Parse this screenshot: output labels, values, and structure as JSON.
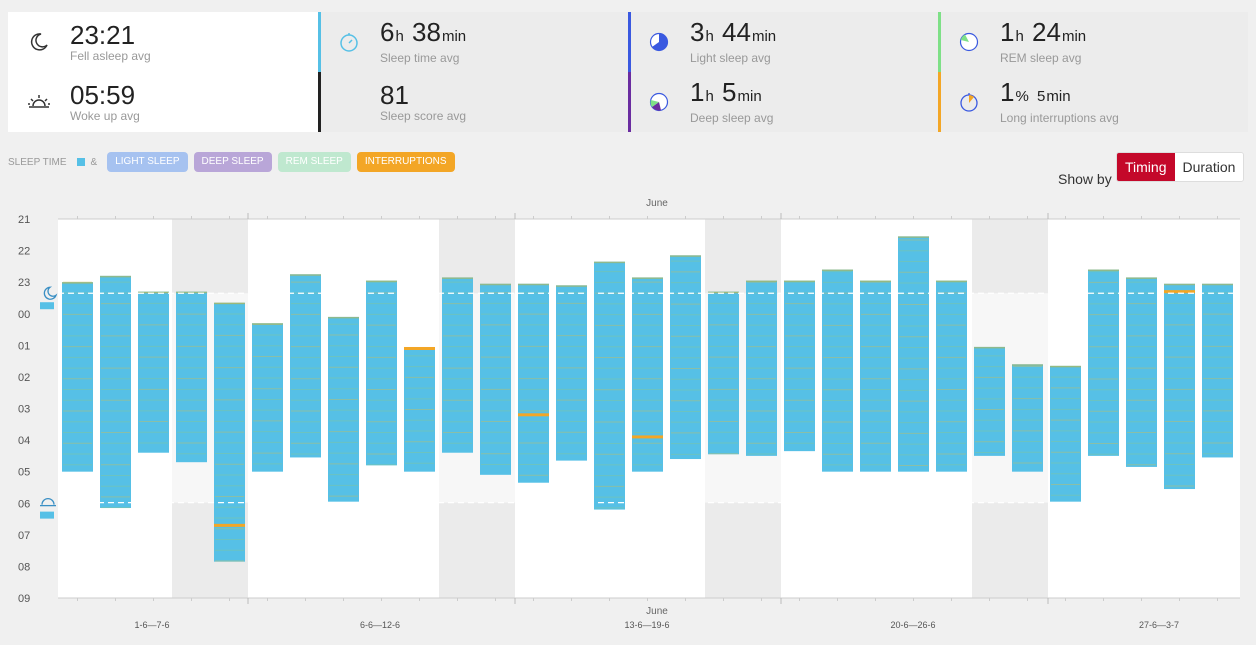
{
  "stats": {
    "fell_asleep": {
      "value": "23:21",
      "label": "Fell asleep avg",
      "icon": "moon-icon"
    },
    "woke_up": {
      "value": "05:59",
      "label": "Woke up avg",
      "icon": "sunrise-icon"
    },
    "sleep_time": {
      "h": "6",
      "h_unit": "h",
      "m": "38",
      "m_unit": "min",
      "label": "Sleep time avg",
      "icon": "stopwatch-icon",
      "color": "#56c0e6"
    },
    "sleep_score": {
      "value": "81",
      "label": "Sleep score avg",
      "color": "#222222"
    },
    "light_sleep": {
      "h": "3",
      "h_unit": "h",
      "m": "44",
      "m_unit": "min",
      "label": "Light sleep avg",
      "icon": "pie-icon",
      "color": "#3a59e0"
    },
    "deep_sleep": {
      "h": "1",
      "h_unit": "h",
      "m": "5",
      "m_unit": "min",
      "label": "Deep sleep avg",
      "icon": "pie-icon",
      "color": "#6a2ca0"
    },
    "rem_sleep": {
      "h": "1",
      "h_unit": "h",
      "m": "24",
      "m_unit": "min",
      "label": "REM sleep avg",
      "icon": "pie-icon",
      "color": "#7ee087"
    },
    "interruptions": {
      "h": "1",
      "h_unit": "%",
      "m": "5",
      "m_unit": "min",
      "label": "Long interruptions avg",
      "icon": "stopwatch-icon",
      "color": "#f3a626"
    }
  },
  "legend": {
    "sleep_time": "SLEEP TIME",
    "amp": "&",
    "light": {
      "label": "LIGHT SLEEP",
      "color": "#a6c2f0"
    },
    "deep": {
      "label": "DEEP SLEEP",
      "color": "#b9a6d8"
    },
    "rem": {
      "label": "REM SLEEP",
      "color": "#bfe8cf"
    },
    "interruptions": {
      "label": "INTERRUPTIONS",
      "color": "#f3a626"
    }
  },
  "controls": {
    "show_by": "Show by",
    "timing": "Timing",
    "duration": "Duration"
  },
  "chart_data": {
    "type": "bar",
    "title": "June",
    "xlabel": "June",
    "ylabel": "",
    "y_ticks": [
      "21",
      "22",
      "23",
      "00",
      "01",
      "02",
      "03",
      "04",
      "05",
      "06",
      "07",
      "08",
      "09"
    ],
    "ylim": [
      21,
      33
    ],
    "avg_start": 23.35,
    "avg_end": 29.98,
    "week_labels": [
      "1-6—7-6",
      "6-6—12-6",
      "13-6—19-6",
      "20-6—26-6",
      "27-6—3-7"
    ],
    "bar_color": "#56c0e6",
    "series": [
      {
        "name": "Sleep span (start hour, end hour, 21 = 21:00, 24 = 00:00)",
        "values": [
          [
            23.0,
            29.0
          ],
          [
            22.8,
            30.15
          ],
          [
            23.3,
            28.4
          ],
          [
            23.3,
            28.7
          ],
          [
            23.65,
            31.85
          ],
          [
            24.3,
            29.0
          ],
          [
            22.75,
            28.55
          ],
          [
            24.1,
            29.95
          ],
          [
            22.95,
            28.8
          ],
          [
            25.1,
            29.0
          ],
          [
            22.85,
            28.4
          ],
          [
            23.05,
            29.1
          ],
          [
            23.05,
            29.35
          ],
          [
            23.1,
            28.65
          ],
          [
            22.35,
            30.2
          ],
          [
            22.85,
            29.0
          ],
          [
            22.15,
            28.6
          ],
          [
            23.3,
            28.45
          ],
          [
            22.95,
            28.5
          ],
          [
            22.95,
            28.35
          ],
          [
            22.6,
            29.0
          ],
          [
            22.95,
            29.0
          ],
          [
            21.55,
            29.0
          ],
          [
            22.95,
            29.0
          ],
          [
            25.05,
            28.5
          ],
          [
            25.6,
            29.0
          ],
          [
            25.65,
            29.95
          ],
          [
            22.6,
            28.5
          ],
          [
            22.85,
            28.85
          ],
          [
            23.05,
            29.55
          ],
          [
            23.05,
            28.55
          ]
        ]
      }
    ],
    "interruption_marks": [
      [],
      [],
      [],
      [],
      [
        30.7
      ],
      [],
      [],
      [],
      [],
      [
        25.1
      ],
      [],
      [],
      [
        27.2
      ],
      [],
      [],
      [
        27.9
      ],
      [],
      [],
      [],
      [],
      [],
      [],
      [],
      [],
      [],
      [],
      [],
      [],
      [],
      [
        23.3
      ],
      []
    ]
  }
}
